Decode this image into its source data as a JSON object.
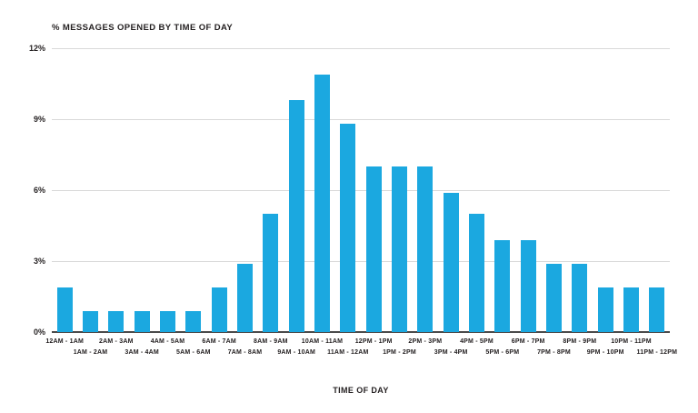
{
  "chart_data": {
    "type": "bar",
    "title": "% MESSAGES OPENED BY TIME OF DAY",
    "xlabel": "TIME OF DAY",
    "ylabel": "",
    "categories": [
      "12AM - 1AM",
      "1AM - 2AM",
      "2AM - 3AM",
      "3AM - 4AM",
      "4AM - 5AM",
      "5AM - 6AM",
      "6AM - 7AM",
      "7AM - 8AM",
      "8AM - 9AM",
      "9AM - 10AM",
      "10AM - 11AM",
      "11AM - 12AM",
      "12PM - 1PM",
      "1PM - 2PM",
      "2PM - 3PM",
      "3PM - 4PM",
      "4PM - 5PM",
      "5PM - 6PM",
      "6PM - 7PM",
      "7PM - 8PM",
      "8PM - 9PM",
      "9PM - 10PM",
      "10PM - 11PM",
      "11PM - 12PM"
    ],
    "values": [
      1.9,
      0.9,
      0.9,
      0.9,
      0.9,
      0.9,
      1.9,
      2.9,
      5.0,
      9.8,
      10.9,
      8.8,
      7.0,
      7.0,
      7.0,
      5.9,
      5.0,
      3.9,
      3.9,
      2.9,
      2.9,
      1.9,
      1.9,
      1.9
    ],
    "y_ticks": [
      {
        "value": 0,
        "label": "0%"
      },
      {
        "value": 3,
        "label": "3%"
      },
      {
        "value": 6,
        "label": "6%"
      },
      {
        "value": 9,
        "label": "9%"
      },
      {
        "value": 12,
        "label": "12%"
      }
    ],
    "ylim": [
      0,
      12
    ],
    "grid": true,
    "legend": "none",
    "colors": {
      "bar": "#1ba8e0",
      "text": "#231f20",
      "gridline": "#d9d9d9",
      "axis_line": "#4a4a4a",
      "background": "#ffffff"
    }
  }
}
